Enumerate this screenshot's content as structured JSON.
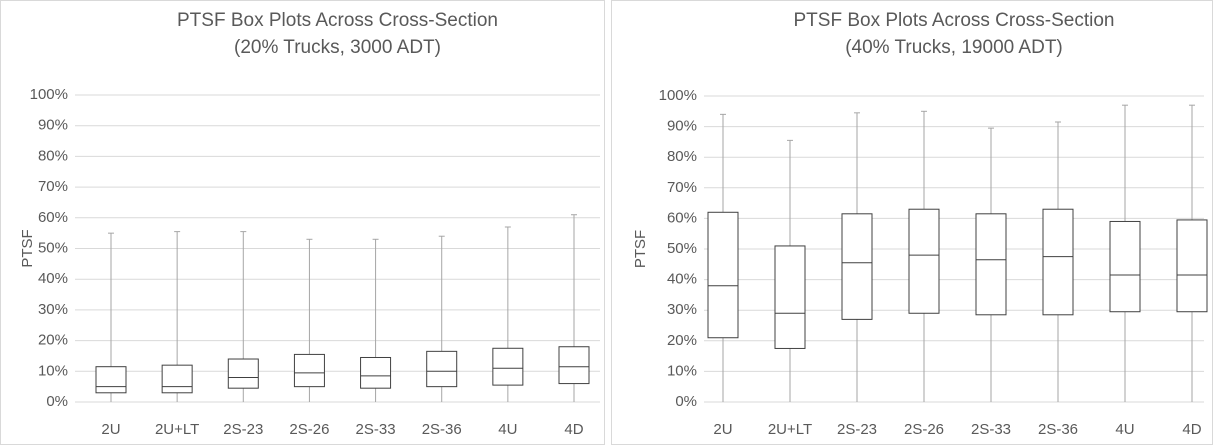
{
  "chart_data": [
    {
      "type": "box",
      "title": "PTSF Box Plots Across Cross-Section",
      "subtitle": "(20% Trucks, 3000 ADT)",
      "y_label": "PTSF",
      "categories": [
        "2U",
        "2U+LT",
        "2S-23",
        "2S-26",
        "2S-33",
        "2S-36",
        "4U",
        "4D"
      ],
      "min": [
        0,
        0,
        0,
        0,
        0,
        0,
        0,
        0
      ],
      "q1": [
        3,
        3,
        4.5,
        5,
        4.5,
        5,
        5.5,
        6
      ],
      "median": [
        5,
        5,
        8,
        9.5,
        8.5,
        10,
        11,
        11.5
      ],
      "q3": [
        11.5,
        12,
        14,
        15.5,
        14.5,
        16.5,
        17.5,
        18
      ],
      "max": [
        55,
        55.5,
        55.5,
        53,
        53,
        54,
        57,
        61
      ],
      "ylim": [
        0,
        100
      ],
      "yticks": [
        {
          "value": 0,
          "label": "0%"
        },
        {
          "value": 10,
          "label": "10%"
        },
        {
          "value": 20,
          "label": "20%"
        },
        {
          "value": 30,
          "label": "30%"
        },
        {
          "value": 40,
          "label": "40%"
        },
        {
          "value": 50,
          "label": "50%"
        },
        {
          "value": 60,
          "label": "60%"
        },
        {
          "value": 70,
          "label": "70%"
        },
        {
          "value": 80,
          "label": "80%"
        },
        {
          "value": 90,
          "label": "90%"
        },
        {
          "value": 100,
          "label": "100%"
        }
      ],
      "grid": true,
      "color": "#404040"
    },
    {
      "type": "box",
      "title": "PTSF Box Plots Across Cross-Section",
      "subtitle": "(40% Trucks, 19000 ADT)",
      "y_label": "PTSF",
      "categories": [
        "2U",
        "2U+LT",
        "2S-23",
        "2S-26",
        "2S-33",
        "2S-36",
        "4U",
        "4D"
      ],
      "min": [
        0,
        0,
        0,
        0,
        0,
        0,
        0,
        0
      ],
      "q1": [
        21,
        17.5,
        27,
        29,
        28.5,
        28.5,
        29.5,
        29.5
      ],
      "median": [
        38,
        29,
        45.5,
        48,
        46.5,
        47.5,
        41.5,
        41.5
      ],
      "q3": [
        62,
        51,
        61.5,
        63,
        61.5,
        63,
        59,
        59.5
      ],
      "max": [
        94,
        85.5,
        94.5,
        95,
        89.5,
        91.5,
        97,
        97
      ],
      "ylim": [
        0,
        100
      ],
      "yticks": [
        {
          "value": 0,
          "label": "0%"
        },
        {
          "value": 10,
          "label": "10%"
        },
        {
          "value": 20,
          "label": "20%"
        },
        {
          "value": 30,
          "label": "30%"
        },
        {
          "value": 40,
          "label": "40%"
        },
        {
          "value": 50,
          "label": "50%"
        },
        {
          "value": 60,
          "label": "60%"
        },
        {
          "value": 70,
          "label": "70%"
        },
        {
          "value": 80,
          "label": "80%"
        },
        {
          "value": 90,
          "label": "90%"
        },
        {
          "value": 100,
          "label": "100%"
        }
      ],
      "grid": true,
      "color": "#404040"
    }
  ]
}
